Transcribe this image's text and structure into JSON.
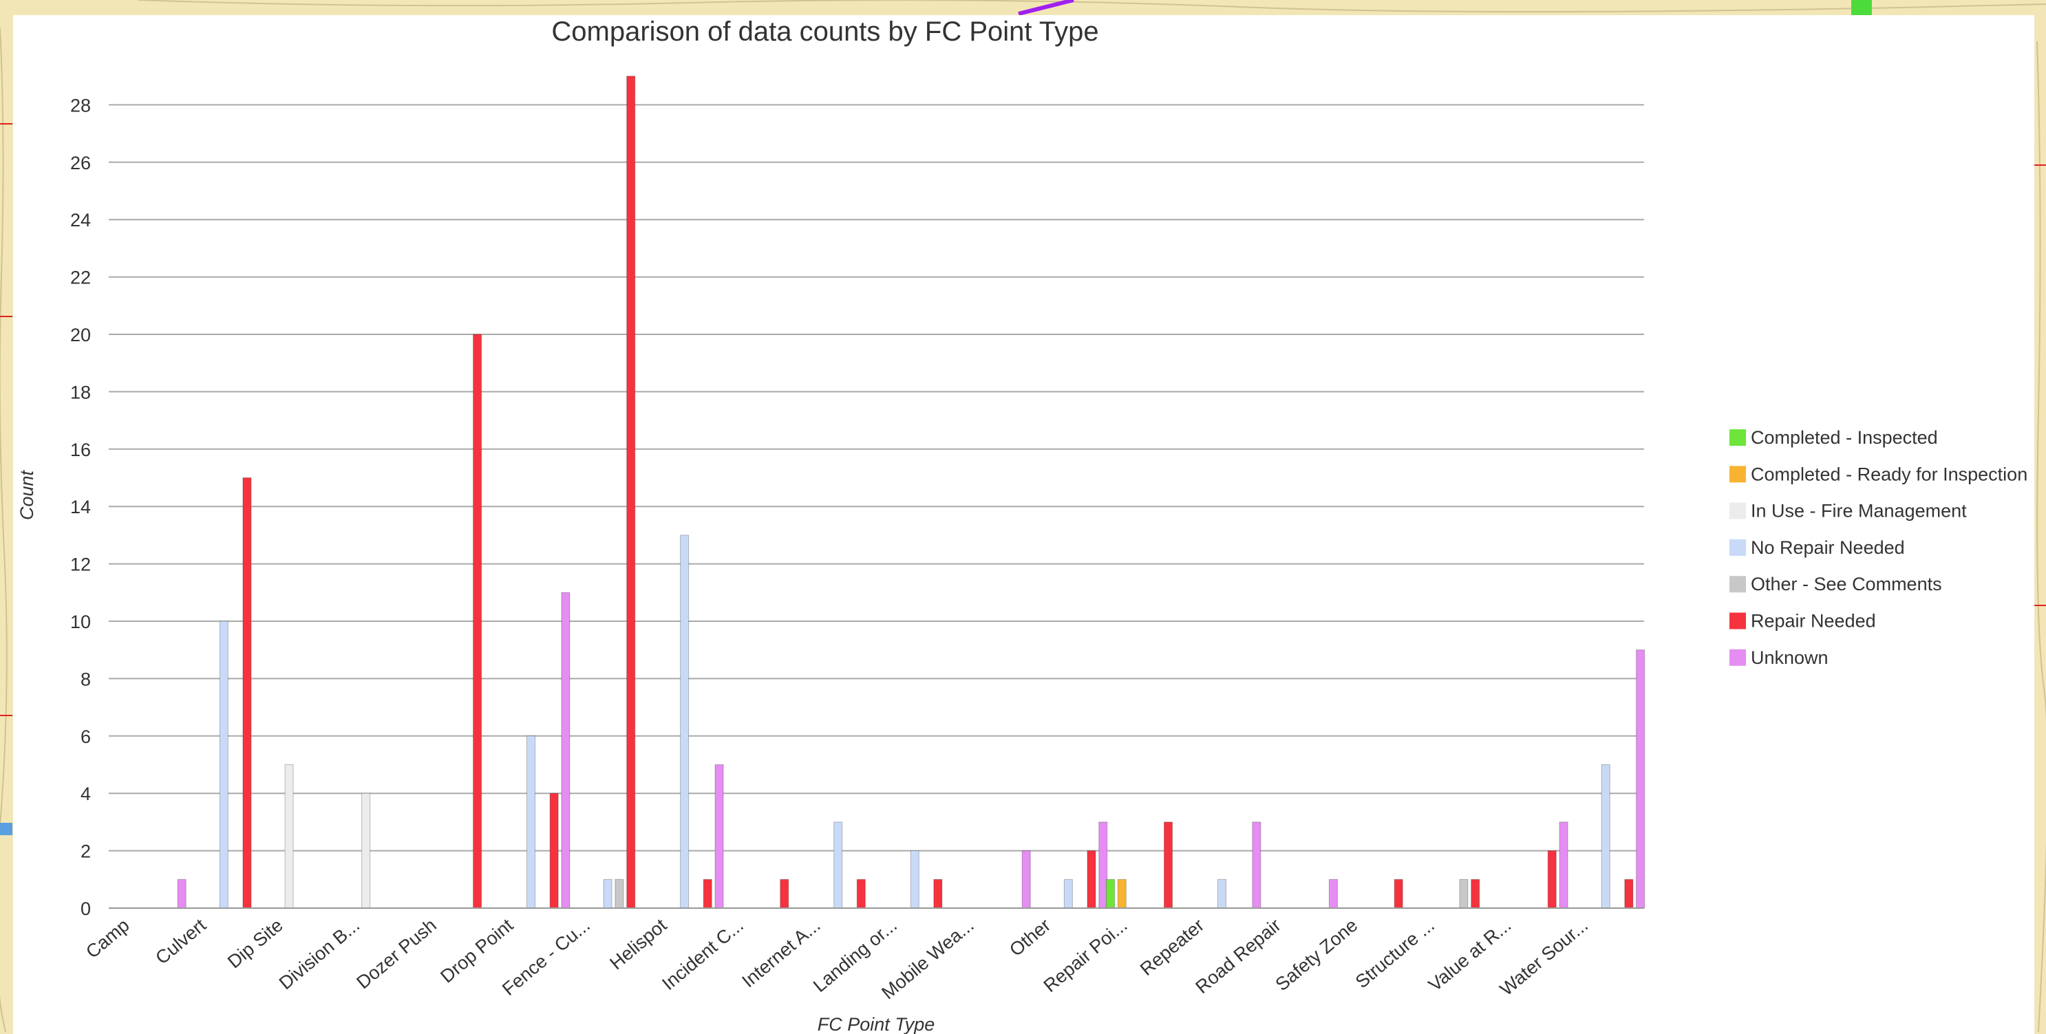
{
  "chart_data": {
    "type": "bar",
    "title": "Comparison of data counts by FC Point Type",
    "xlabel": "FC Point Type",
    "ylabel": "Count",
    "ylim": [
      0,
      29
    ],
    "yticks": [
      0,
      2,
      4,
      6,
      8,
      10,
      12,
      14,
      16,
      18,
      20,
      22,
      24,
      26,
      28
    ],
    "grid": true,
    "legend_position": "right",
    "categories": [
      "Camp",
      "Culvert",
      "Dip Site",
      "Division B...",
      "Dozer Push",
      "Drop Point",
      "Fence - Cu...",
      "Helispot",
      "Incident C...",
      "Internet A...",
      "Landing or...",
      "Mobile Wea...",
      "Other",
      "Repair Poi...",
      "Repeater",
      "Road Repair",
      "Safety Zone",
      "Structure ...",
      "Value at R...",
      "Water Sour..."
    ],
    "series": [
      {
        "name": "Completed - Inspected",
        "color": "#6ee53a",
        "values": [
          0,
          0,
          0,
          0,
          0,
          0,
          0,
          0,
          0,
          0,
          0,
          0,
          0,
          1,
          0,
          0,
          0,
          0,
          0,
          0
        ]
      },
      {
        "name": "Completed - Ready for Inspection",
        "color": "#f8b431",
        "values": [
          0,
          0,
          0,
          0,
          0,
          0,
          0,
          0,
          0,
          0,
          0,
          0,
          0,
          1,
          0,
          0,
          0,
          0,
          0,
          0
        ]
      },
      {
        "name": "In Use - Fire Management",
        "color": "#ececec",
        "values": [
          0,
          0,
          5,
          4,
          0,
          0,
          0,
          0,
          0,
          0,
          0,
          0,
          0,
          0,
          0,
          0,
          0,
          0,
          0,
          0
        ]
      },
      {
        "name": "No Repair Needed",
        "color": "#c9daf8",
        "values": [
          0,
          10,
          0,
          0,
          0,
          6,
          1,
          13,
          0,
          3,
          2,
          0,
          1,
          0,
          1,
          0,
          0,
          0,
          0,
          5
        ]
      },
      {
        "name": "Other - See Comments",
        "color": "#c8c8c8",
        "values": [
          0,
          0,
          0,
          0,
          0,
          0,
          1,
          0,
          0,
          0,
          0,
          0,
          0,
          0,
          0,
          0,
          0,
          1,
          0,
          0
        ]
      },
      {
        "name": "Repair Needed",
        "color": "#f5333f",
        "values": [
          0,
          15,
          0,
          0,
          20,
          4,
          29,
          1,
          1,
          1,
          1,
          0,
          2,
          3,
          0,
          0,
          1,
          1,
          2,
          1
        ]
      },
      {
        "name": "Unknown",
        "color": "#e58df2",
        "values": [
          1,
          0,
          0,
          0,
          0,
          11,
          0,
          5,
          0,
          0,
          0,
          2,
          3,
          0,
          3,
          1,
          0,
          0,
          3,
          9
        ]
      }
    ]
  }
}
